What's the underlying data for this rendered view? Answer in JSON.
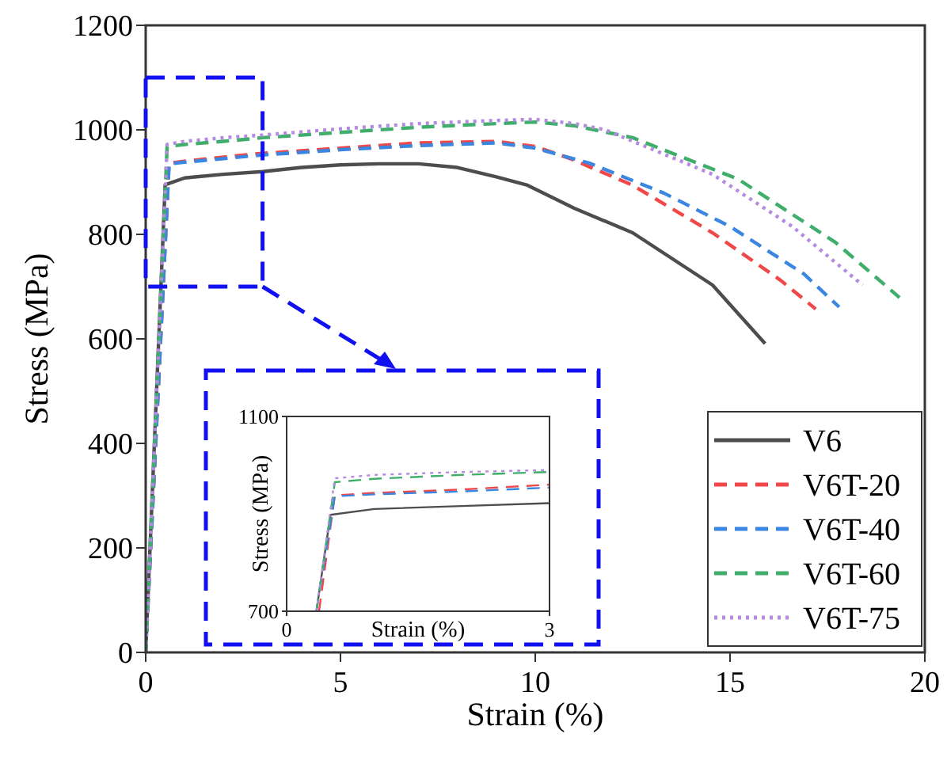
{
  "chart_data": [
    {
      "type": "line",
      "xlabel": "Strain (%)",
      "ylabel": "Stress (MPa)",
      "xlim": [
        0,
        20
      ],
      "xticks": [
        0,
        5,
        10,
        15,
        20
      ],
      "ylim": [
        0,
        1200
      ],
      "yticks": [
        0,
        200,
        400,
        600,
        800,
        1000,
        1200
      ],
      "legend": "bottom right",
      "grid": false,
      "series": [
        {
          "name": "V6",
          "color": "#4d4d4d",
          "line_style": "solid",
          "x": [
            0,
            0.5,
            1,
            2,
            3,
            4,
            5,
            6,
            7,
            8,
            9,
            9.8,
            11,
            12.5,
            14.55,
            15.9
          ],
          "values": [
            0,
            895,
            908,
            915,
            920,
            928,
            933,
            935,
            935,
            928,
            910,
            894,
            850,
            803,
            703,
            591
          ]
        },
        {
          "name": "V6T-20",
          "color": "#f04848",
          "line_style": "dashed",
          "x": [
            0,
            0.6,
            1,
            2,
            3,
            5,
            7,
            9,
            10,
            10.9,
            12.5,
            14.55,
            16.3,
            17.2
          ],
          "values": [
            0,
            936,
            940,
            948,
            955,
            965,
            975,
            978,
            968,
            945,
            894,
            803,
            712,
            657
          ]
        },
        {
          "name": "V6T-40",
          "color": "#3a86e0",
          "line_style": "dashed",
          "x": [
            0,
            0.6,
            1,
            2,
            3,
            5,
            7,
            9,
            10,
            11.4,
            13.3,
            15,
            16.9,
            17.8
          ],
          "values": [
            0,
            935,
            938,
            945,
            952,
            962,
            970,
            975,
            965,
            936,
            879,
            815,
            724,
            661
          ]
        },
        {
          "name": "V6T-60",
          "color": "#3fae6a",
          "line_style": "dashed",
          "x": [
            0,
            0.55,
            1,
            2,
            3,
            5,
            7,
            9,
            10,
            11,
            12.5,
            15.2,
            17.7,
            19.35
          ],
          "values": [
            0,
            968,
            972,
            978,
            985,
            995,
            1005,
            1012,
            1015,
            1008,
            985,
            906,
            785,
            679
          ]
        },
        {
          "name": "V6T-75",
          "color": "#b58ae0",
          "line_style": "dotted",
          "x": [
            0,
            0.55,
            1,
            2,
            3,
            5,
            7,
            9,
            10,
            11,
            11.8,
            14.55,
            16.6,
            18.4
          ],
          "values": [
            0,
            972,
            978,
            985,
            990,
            1002,
            1012,
            1018,
            1020,
            1012,
            1000,
            915,
            815,
            703
          ]
        }
      ]
    },
    {
      "type": "line",
      "xlabel": "Strain (%)",
      "ylabel": "Stress (MPa)",
      "xlim": [
        0,
        3
      ],
      "xticks": [
        0,
        3
      ],
      "ylim": [
        700,
        1100
      ],
      "yticks": [
        700,
        1100
      ],
      "grid": false,
      "series": [
        {
          "color": "#4d4d4d",
          "line_style": "solid",
          "x": [
            0.34,
            0.5,
            1,
            2,
            3
          ],
          "values": [
            700,
            898,
            910,
            916,
            922
          ]
        },
        {
          "color": "#f04848",
          "line_style": "dashed",
          "x": [
            0.37,
            0.55,
            1,
            2,
            3
          ],
          "values": [
            700,
            938,
            943,
            950,
            960
          ]
        },
        {
          "color": "#3a86e0",
          "line_style": "dashed",
          "x": [
            0.34,
            0.55,
            1,
            2,
            3
          ],
          "values": [
            700,
            936,
            940,
            946,
            954
          ]
        },
        {
          "color": "#3fae6a",
          "line_style": "dashed",
          "x": [
            0.34,
            0.55,
            1,
            2,
            3
          ],
          "values": [
            700,
            965,
            972,
            980,
            986
          ]
        },
        {
          "color": "#b58ae0",
          "line_style": "dotted",
          "x": [
            0.34,
            0.55,
            1,
            2,
            3
          ],
          "values": [
            700,
            973,
            980,
            986,
            990
          ]
        }
      ]
    }
  ]
}
